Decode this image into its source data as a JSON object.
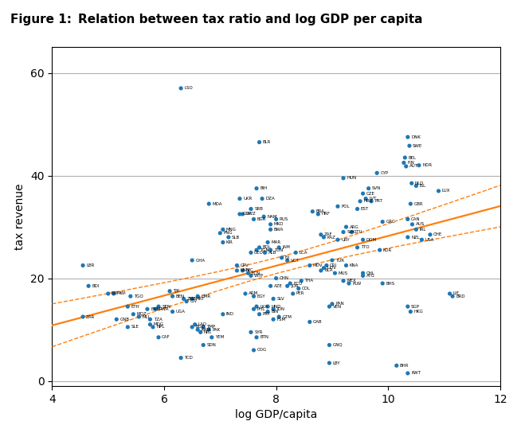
{
  "chart_data": {
    "type": "scatter",
    "title": "Figure 1:",
    "subtitle": "Relation between tax ratio and log GDP per capita",
    "xlabel": "log GDP/capita",
    "ylabel": "tax revenue",
    "xlim": [
      4,
      12
    ],
    "ylim": [
      -1,
      65
    ],
    "xticks": [
      4,
      6,
      8,
      10,
      12
    ],
    "yticks": [
      0,
      20,
      40,
      60
    ],
    "grid": "y",
    "marker": "o",
    "annotations": [
      "LSO",
      "BLR",
      "DNK",
      "SWE",
      "BEL",
      "FIN",
      "NOR",
      "AUT",
      "CYP",
      "HUN",
      "NLD",
      "ISL",
      "BIH",
      "DZA",
      "CZE",
      "LVT",
      "EST",
      "HRV",
      "LUX",
      "GBR",
      "MDA",
      "UKR",
      "SRB",
      "BGR",
      "BRA",
      "HRF",
      "POL",
      "SVK",
      "RUS",
      "GUY",
      "MKD",
      "NAM",
      "GRC",
      "ARG",
      "CAN",
      "AUS",
      "IRL",
      "CHE",
      "NZL",
      "USA",
      "MNG",
      "PNG",
      "SLB",
      "KIR",
      "DOM",
      "KOR",
      "GEO",
      "TGN",
      "ZAF",
      "ALB",
      "LCA",
      "MAR",
      "BOL",
      "TTO",
      "TUR",
      "CRI",
      "KNA",
      "UDV",
      "CHL",
      "MDV",
      "BLA",
      "MUS",
      "ATG",
      "LBR",
      "GHA",
      "VNM",
      "NIC",
      "ECN",
      "WTP",
      "CHN",
      "THA",
      "MEX",
      "PLW",
      "BHS",
      "LIE",
      "BRD",
      "SGP",
      "HKG",
      "BDI",
      "TJK",
      "ERI",
      "MWI",
      "TGO",
      "BEN",
      "MRT",
      "CMR",
      "ETH",
      "SEN",
      "BRN",
      "UGA",
      "RWA",
      "MOZ",
      "MDG",
      "NPL",
      "LAO",
      "KHM",
      "BGD",
      "PAK",
      "TMP",
      "NIG",
      "YEM",
      "SDN",
      "CAF",
      "TCD",
      "COG",
      "BTN",
      "SYR",
      "PRY",
      "IDN",
      "GTM",
      "HND",
      "VEN",
      "PAN",
      "GAB",
      "GNQ",
      "LBY",
      "BHR",
      "KWT",
      "ZAR",
      "MLI",
      "GNB",
      "IND",
      "ZMB",
      "SLE",
      "TZA",
      "BWA",
      "SLV",
      "ECU",
      "URY",
      "PER",
      "COL",
      "FJI",
      "VCT",
      "JAM",
      "LKA",
      "CIV",
      "PHL",
      "TUN",
      "EGY",
      "JOR",
      "ARM",
      "AZE",
      "KAZ",
      "LTU",
      "SVN",
      "PRT",
      "SWZ",
      "CPV",
      "FSM",
      "BIN"
    ],
    "x": [
      6.3,
      7.7,
      10.35,
      10.38,
      10.3,
      10.28,
      10.55,
      10.32,
      9.8,
      9.2,
      10.42,
      10.5,
      7.65,
      7.75,
      9.55,
      9.6,
      9.45,
      9.5,
      10.9,
      10.4,
      6.8,
      7.35,
      7.55,
      7.6,
      8.65,
      8.75,
      9.1,
      9.2,
      8.0,
      7.35,
      7.9,
      7.78,
      9.9,
      9.25,
      10.35,
      10.43,
      10.5,
      10.75,
      10.35,
      10.6,
      7.05,
      7.0,
      7.15,
      7.05,
      9.55,
      9.85,
      7.55,
      7.65,
      8.8,
      7.8,
      8.35,
      7.85,
      7.7,
      9.45,
      9.0,
      8.9,
      9.25,
      8.85,
      9.55,
      8.6,
      8.8,
      9.05,
      9.55,
      4.55,
      6.5,
      7.3,
      7.4,
      7.5,
      7.55,
      8.0,
      8.45,
      9.2,
      9.3,
      9.9,
      11.1,
      11.15,
      10.35,
      10.4,
      4.65,
      6.1,
      5.0,
      5.1,
      5.4,
      6.15,
      6.5,
      6.6,
      5.35,
      5.9,
      5.7,
      6.15,
      5.85,
      5.45,
      5.75,
      5.8,
      6.55,
      6.6,
      6.5,
      6.8,
      6.7,
      6.65,
      6.85,
      6.7,
      5.9,
      6.3,
      7.6,
      7.65,
      7.55,
      7.7,
      7.95,
      8.05,
      7.85,
      8.95,
      9.0,
      8.6,
      8.95,
      8.95,
      10.15,
      10.35,
      4.55,
      5.55,
      5.15,
      7.05,
      6.35,
      5.35,
      5.75,
      7.9,
      7.95,
      8.25,
      9.1,
      8.3,
      8.4,
      8.1,
      8.2,
      8.05,
      7.65,
      6.4,
      7.6,
      7.9,
      7.6,
      8.2,
      7.45,
      7.9,
      8.85,
      9.35,
      9.65,
      9.7,
      7.4,
      7.3,
      7.95,
      7.85
    ],
    "values": [
      57.0,
      46.5,
      47.5,
      45.8,
      43.5,
      42.5,
      42.0,
      41.8,
      40.5,
      39.5,
      38.5,
      38.0,
      37.5,
      35.5,
      36.5,
      35.5,
      33.5,
      35.0,
      37.0,
      34.5,
      34.5,
      35.5,
      33.5,
      31.5,
      33.0,
      32.5,
      34.0,
      29.0,
      31.5,
      32.5,
      30.5,
      32.0,
      31.0,
      30.0,
      31.5,
      30.5,
      29.5,
      28.5,
      28.0,
      27.5,
      29.5,
      28.8,
      28.0,
      27.0,
      27.5,
      25.5,
      25.0,
      25.5,
      28.5,
      25.0,
      25.0,
      27.0,
      26.0,
      26.0,
      23.5,
      22.5,
      22.5,
      22.0,
      21.0,
      22.5,
      21.5,
      21.0,
      20.5,
      22.5,
      23.5,
      21.5,
      21.5,
      21.0,
      20.5,
      20.0,
      19.5,
      19.5,
      19.0,
      19.0,
      17.0,
      16.5,
      14.5,
      13.5,
      18.5,
      17.5,
      17.0,
      17.0,
      16.5,
      16.5,
      16.0,
      16.5,
      14.5,
      14.5,
      14.0,
      13.5,
      14.0,
      13.0,
      11.0,
      10.5,
      11.0,
      10.0,
      10.5,
      10.0,
      10.5,
      9.5,
      8.5,
      7.0,
      8.5,
      4.5,
      6.0,
      8.5,
      9.5,
      13.0,
      14.0,
      12.5,
      14.5,
      14.5,
      15.0,
      11.5,
      7.0,
      3.5,
      3.0,
      1.5,
      12.5,
      12.5,
      12.0,
      13.0,
      16.0,
      10.5,
      12.0,
      29.5,
      16.0,
      19.0,
      27.5,
      17.0,
      18.0,
      24.0,
      23.5,
      26.0,
      14.5,
      15.5,
      14.0,
      25.5,
      16.5,
      18.5,
      17.0,
      18.5,
      28.0,
      29.0,
      37.5,
      35.0,
      32.5,
      22.5,
      12.0,
      13.5
    ],
    "series": [
      {
        "type": "line",
        "line_style": "solid",
        "x": [
          4,
          12
        ],
        "values": [
          10.83,
          34.05
        ]
      },
      {
        "type": "line",
        "line_style": "dashed",
        "x": [
          4,
          4.5,
          5,
          5.5,
          6,
          6.5,
          7,
          7.5,
          8,
          8.5,
          9,
          9.5,
          10,
          10.5,
          11,
          11.5,
          12
        ],
        "values": [
          15.01,
          16.02,
          17.04,
          18.08,
          19.14,
          20.23,
          21.38,
          22.61,
          23.97,
          25.47,
          27.1,
          28.84,
          30.63,
          32.47,
          34.33,
          36.2,
          38.09
        ]
      },
      {
        "type": "line",
        "line_style": "dashed",
        "x": [
          4,
          4.5,
          5,
          5.5,
          6,
          6.5,
          7,
          7.5,
          8,
          8.5,
          9,
          9.5,
          10,
          10.5,
          11,
          11.5,
          12
        ],
        "values": [
          6.66,
          8.55,
          10.43,
          12.3,
          14.14,
          15.95,
          17.7,
          19.37,
          20.92,
          22.32,
          23.58,
          24.75,
          25.86,
          26.92,
          27.97,
          28.99,
          30.0
        ]
      }
    ]
  }
}
